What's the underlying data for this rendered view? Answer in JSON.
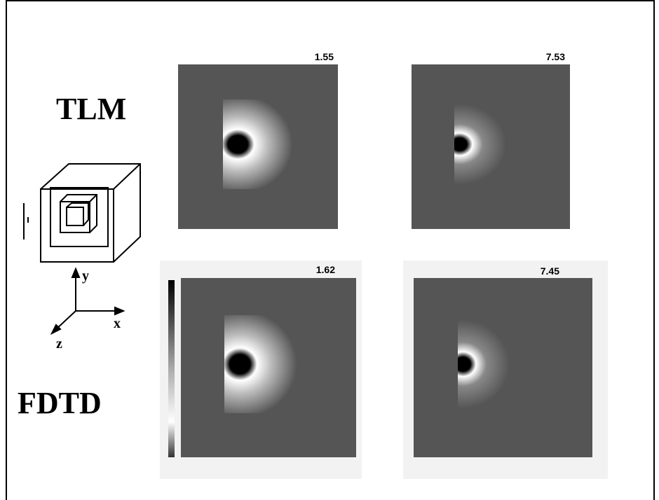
{
  "row_labels": [
    "TLM",
    "FDTD"
  ],
  "panels": [
    {
      "label": "1.55"
    },
    {
      "label": "7.53"
    },
    {
      "label": "1.62"
    },
    {
      "label": "7.45"
    }
  ],
  "axes": {
    "y": "y",
    "x": "x",
    "z": "z"
  }
}
